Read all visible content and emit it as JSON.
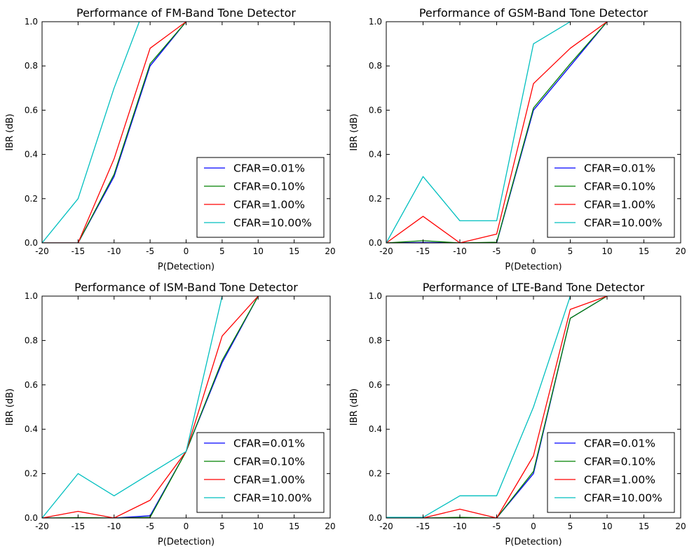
{
  "chart_data": [
    {
      "type": "line",
      "title": "Performance of FM-Band Tone Detector",
      "xlabel": "P(Detection)",
      "ylabel": "IBR (dB)",
      "xlim": [
        -20,
        20
      ],
      "ylim": [
        0,
        1
      ],
      "xticks": [
        -20,
        -15,
        -10,
        -5,
        0,
        5,
        10,
        15,
        20
      ],
      "yticks": [
        0.0,
        0.2,
        0.4,
        0.6,
        0.8,
        1.0
      ],
      "grid": false,
      "legend_position": "lower-right",
      "series": [
        {
          "name": "CFAR=0.01%",
          "color": "#0000ff",
          "x": [
            -20,
            -15,
            -10,
            -5,
            0
          ],
          "y": [
            0,
            0,
            0.3,
            0.8,
            1.0
          ]
        },
        {
          "name": "CFAR=0.10%",
          "color": "#008000",
          "x": [
            -20,
            -15,
            -10,
            -5,
            0
          ],
          "y": [
            0,
            0,
            0.31,
            0.81,
            1.0
          ]
        },
        {
          "name": "CFAR=1.00%",
          "color": "#ff0000",
          "x": [
            -20,
            -15,
            -10,
            -5,
            0
          ],
          "y": [
            0,
            0,
            0.38,
            0.88,
            1.0
          ]
        },
        {
          "name": "CFAR=10.00%",
          "color": "#00bfbf",
          "x": [
            -20,
            -15,
            -10,
            -6.5
          ],
          "y": [
            0,
            0.2,
            0.7,
            1.0
          ]
        }
      ]
    },
    {
      "type": "line",
      "title": "Performance of GSM-Band Tone Detector",
      "xlabel": "P(Detection)",
      "ylabel": "IBR (dB)",
      "xlim": [
        -20,
        20
      ],
      "ylim": [
        0,
        1
      ],
      "xticks": [
        -20,
        -15,
        -10,
        -5,
        0,
        5,
        10,
        15,
        20
      ],
      "yticks": [
        0.0,
        0.2,
        0.4,
        0.6,
        0.8,
        1.0
      ],
      "grid": false,
      "legend_position": "lower-right",
      "series": [
        {
          "name": "CFAR=0.01%",
          "color": "#0000ff",
          "x": [
            -20,
            -15,
            -10,
            -5,
            0,
            5,
            10
          ],
          "y": [
            0,
            0.002,
            0,
            0,
            0.6,
            0.8,
            1.0
          ]
        },
        {
          "name": "CFAR=0.10%",
          "color": "#008000",
          "x": [
            -20,
            -15,
            -10,
            -5,
            0,
            5,
            10
          ],
          "y": [
            0,
            0.01,
            0,
            0.003,
            0.61,
            0.81,
            1.0
          ]
        },
        {
          "name": "CFAR=1.00%",
          "color": "#ff0000",
          "x": [
            -20,
            -15,
            -10,
            -5,
            0,
            5,
            10
          ],
          "y": [
            0,
            0.12,
            0,
            0.04,
            0.72,
            0.88,
            1.0
          ]
        },
        {
          "name": "CFAR=10.00%",
          "color": "#00bfbf",
          "x": [
            -20,
            -15,
            -10,
            -5,
            0,
            5
          ],
          "y": [
            0,
            0.3,
            0.1,
            0.1,
            0.9,
            1.0
          ]
        }
      ]
    },
    {
      "type": "line",
      "title": "Performance of ISM-Band Tone Detector",
      "xlabel": "P(Detection)",
      "ylabel": "IBR (dB)",
      "xlim": [
        -20,
        20
      ],
      "ylim": [
        0,
        1
      ],
      "xticks": [
        -20,
        -15,
        -10,
        -5,
        0,
        5,
        10,
        15,
        20
      ],
      "yticks": [
        0.0,
        0.2,
        0.4,
        0.6,
        0.8,
        1.0
      ],
      "grid": false,
      "legend_position": "lower-right",
      "series": [
        {
          "name": "CFAR=0.01%",
          "color": "#0000ff",
          "x": [
            -20,
            -15,
            -10,
            -5,
            0,
            5,
            10
          ],
          "y": [
            0,
            0,
            0,
            0.01,
            0.3,
            0.7,
            1.0
          ]
        },
        {
          "name": "CFAR=0.10%",
          "color": "#008000",
          "x": [
            -20,
            -15,
            -10,
            -5,
            0,
            5,
            10
          ],
          "y": [
            0,
            0.002,
            0,
            0.003,
            0.3,
            0.71,
            1.0
          ]
        },
        {
          "name": "CFAR=1.00%",
          "color": "#ff0000",
          "x": [
            -20,
            -15,
            -10,
            -5,
            0,
            5,
            10
          ],
          "y": [
            0,
            0.03,
            0,
            0.08,
            0.3,
            0.82,
            1.0
          ]
        },
        {
          "name": "CFAR=10.00%",
          "color": "#00bfbf",
          "x": [
            -20,
            -15,
            -10,
            -5,
            0,
            5
          ],
          "y": [
            0,
            0.2,
            0.1,
            0.2,
            0.3,
            1.0
          ]
        }
      ]
    },
    {
      "type": "line",
      "title": "Performance of LTE-Band Tone Detector",
      "xlabel": "P(Detection)",
      "ylabel": "IBR (dB)",
      "xlim": [
        -20,
        20
      ],
      "ylim": [
        0,
        1
      ],
      "xticks": [
        -20,
        -15,
        -10,
        -5,
        0,
        5,
        10,
        15,
        20
      ],
      "yticks": [
        0.0,
        0.2,
        0.4,
        0.6,
        0.8,
        1.0
      ],
      "grid": false,
      "legend_position": "lower-right",
      "series": [
        {
          "name": "CFAR=0.01%",
          "color": "#0000ff",
          "x": [
            -20,
            -15,
            -10,
            -5,
            0,
            5,
            10
          ],
          "y": [
            0,
            0,
            0,
            0,
            0.2,
            0.9,
            1.0
          ]
        },
        {
          "name": "CFAR=0.10%",
          "color": "#008000",
          "x": [
            -20,
            -15,
            -10,
            -5,
            0,
            5,
            10
          ],
          "y": [
            0,
            0,
            0.003,
            0,
            0.21,
            0.9,
            1.0
          ]
        },
        {
          "name": "CFAR=1.00%",
          "color": "#ff0000",
          "x": [
            -20,
            -15,
            -10,
            -5,
            0,
            5,
            10
          ],
          "y": [
            0,
            0,
            0.04,
            0,
            0.28,
            0.94,
            1.0
          ]
        },
        {
          "name": "CFAR=10.00%",
          "color": "#00bfbf",
          "x": [
            -20,
            -15,
            -10,
            -5,
            0,
            5
          ],
          "y": [
            0.003,
            0.003,
            0.1,
            0.1,
            0.5,
            1.0
          ]
        }
      ]
    }
  ]
}
